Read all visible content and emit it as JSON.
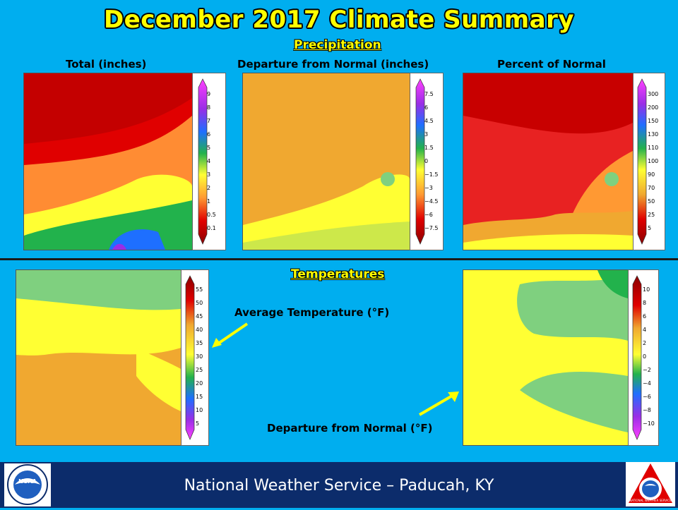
{
  "title": "December 2017 Climate Summary",
  "precipitation": {
    "header": "Precipitation",
    "total_label": "Total  (inches)",
    "departure_label": "Departure  from Normal  (inches)",
    "percent_label": "Percent of Normal",
    "total_legend": [
      "9",
      "8",
      "7",
      "6",
      "5",
      "4",
      "3",
      "2",
      "1",
      "0.5",
      "0.1"
    ],
    "departure_legend": [
      "7.5",
      "6",
      "4.5",
      "3",
      "1.5",
      "0",
      "−1.5",
      "−3",
      "−4.5",
      "−6",
      "−7.5"
    ],
    "percent_legend": [
      "300",
      "200",
      "150",
      "130",
      "110",
      "100",
      "90",
      "70",
      "50",
      "25",
      "5"
    ]
  },
  "temperatures": {
    "header": "Temperatures",
    "average_label": "Average Temperature  (°F)",
    "departure_label": "Departure  from Normal  (°F)",
    "average_legend": [
      "55",
      "50",
      "45",
      "40",
      "35",
      "30",
      "25",
      "20",
      "15",
      "10",
      "5"
    ],
    "departure_legend": [
      "10",
      "8",
      "6",
      "4",
      "2",
      "0",
      "−2",
      "−4",
      "−6",
      "−8",
      "−10"
    ]
  },
  "footer": {
    "text": "National Weather Service – Paducah, KY",
    "left_logo_text": "NOAA",
    "right_logo_text": "NATIONAL WEATHER SERVICE"
  },
  "colors": {
    "background": "#00aeef",
    "title": "#ffff00",
    "footer": "#0c2c6b"
  },
  "icons": [
    "noaa-logo",
    "nws-logo",
    "arrow-icon"
  ]
}
